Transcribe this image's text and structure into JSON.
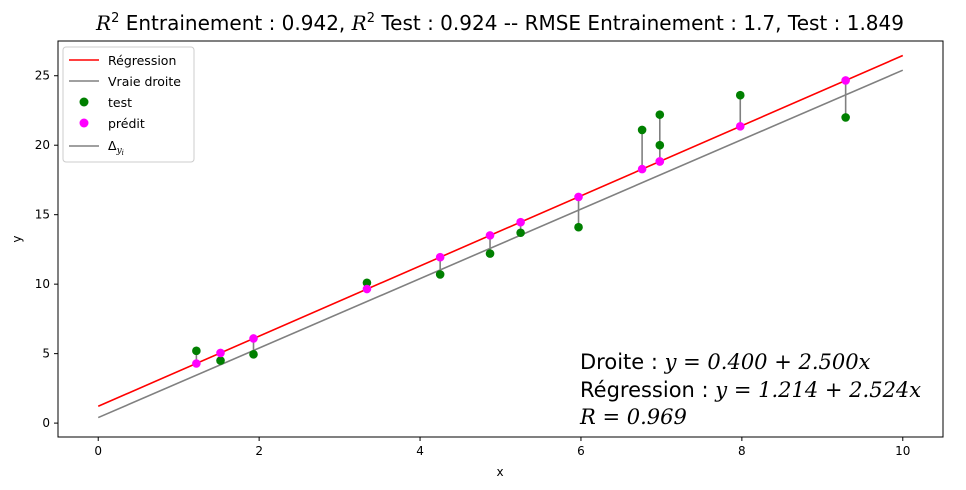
{
  "chart_data": {
    "type": "scatter",
    "title_parts": [
      "R",
      "2",
      " Entrainement : 0.942, ",
      "R",
      "2",
      " Test : 0.924 --  RMSE Entrainement : 1.7, Test : 1.849"
    ],
    "xlabel": "x",
    "ylabel": "y",
    "xlim": [
      -0.5,
      10.5
    ],
    "ylim": [
      -1,
      27.5
    ],
    "x_ticks": [
      0,
      2,
      4,
      6,
      8,
      10
    ],
    "y_ticks": [
      0,
      5,
      10,
      15,
      20,
      25
    ],
    "grid": false,
    "legend_position": "upper-left",
    "lines": [
      {
        "name": "Régression",
        "color": "#ff0000",
        "intercept": 1.214,
        "slope": 2.524,
        "x_range": [
          0,
          10
        ]
      },
      {
        "name": "Vraie droite",
        "color": "#808080",
        "intercept": 0.4,
        "slope": 2.5,
        "x_range": [
          0,
          10
        ]
      }
    ],
    "test_points": {
      "name": "test",
      "color": "#008000",
      "x": [
        1.22,
        1.52,
        1.93,
        3.34,
        4.25,
        4.87,
        5.25,
        5.97,
        6.76,
        6.98,
        6.98,
        7.98,
        9.29
      ],
      "y": [
        5.2,
        4.5,
        4.95,
        10.1,
        10.7,
        12.2,
        13.7,
        14.1,
        21.1,
        22.2,
        20.0,
        23.6,
        22.0
      ]
    },
    "predicted_points": {
      "name": "prédit",
      "color": "#ff00ff",
      "x": [
        1.22,
        1.52,
        1.93,
        3.34,
        4.25,
        4.87,
        5.25,
        5.97,
        6.76,
        6.98,
        6.98,
        7.98,
        9.29
      ],
      "y": [
        4.29,
        5.05,
        6.09,
        9.65,
        11.94,
        13.51,
        14.46,
        16.28,
        18.28,
        18.83,
        18.83,
        21.36,
        24.66
      ]
    },
    "residuals": {
      "name": "Δ",
      "subscript": "y",
      "subsubscript": "i",
      "color": "#808080"
    },
    "annotation": {
      "line1_prefix": "Droite : ",
      "line1_eq": "y = 0.400 + 2.500x",
      "line2_prefix": "Régression : ",
      "line2_eq": "y = 1.214 + 2.524x",
      "line3_eq": "R = 0.969"
    }
  }
}
